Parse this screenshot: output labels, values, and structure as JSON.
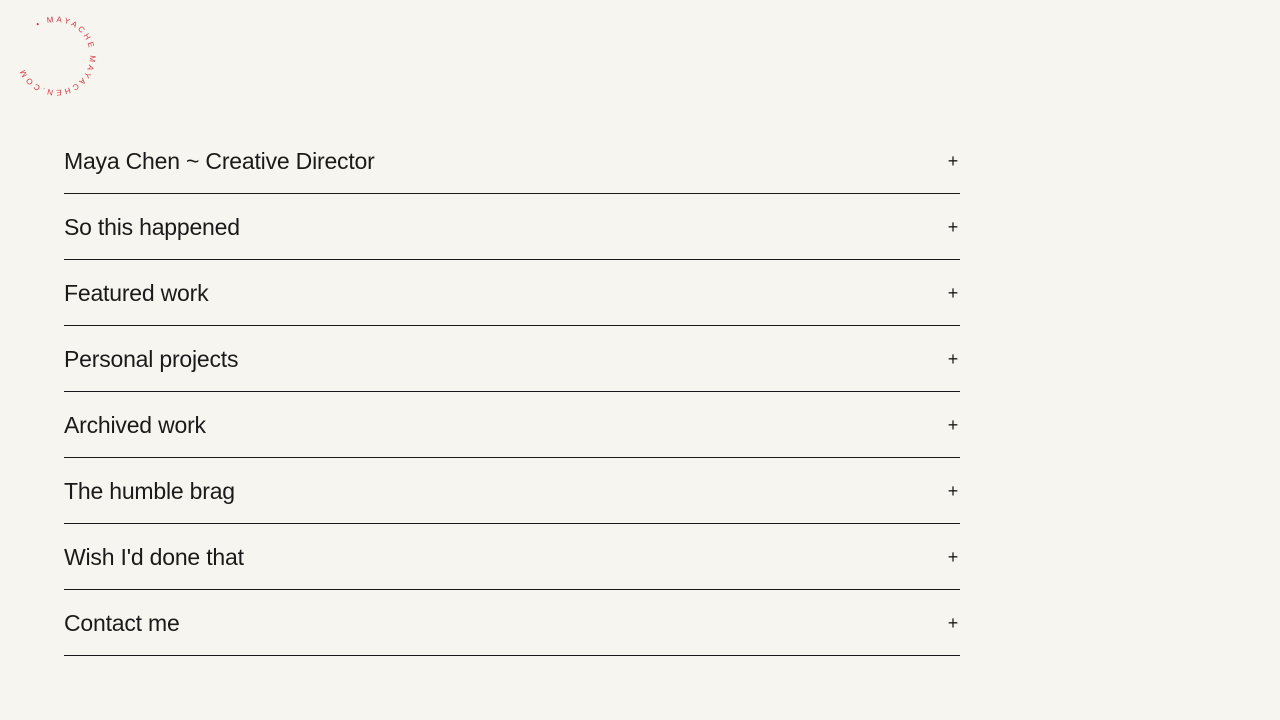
{
  "logo": {
    "text": "• MAYACHE MAYACHEN.COM",
    "color": "#d9363e"
  },
  "accordion": {
    "items": [
      {
        "label": "Maya Chen ~ Creative Director",
        "icon": "+"
      },
      {
        "label": "So this happened",
        "icon": "+"
      },
      {
        "label": "Featured work",
        "icon": "+"
      },
      {
        "label": "Personal projects",
        "icon": "+"
      },
      {
        "label": "Archived work",
        "icon": "+"
      },
      {
        "label": "The humble brag",
        "icon": "+"
      },
      {
        "label": "Wish I'd done that",
        "icon": "+"
      },
      {
        "label": "Contact me",
        "icon": "+"
      }
    ]
  }
}
